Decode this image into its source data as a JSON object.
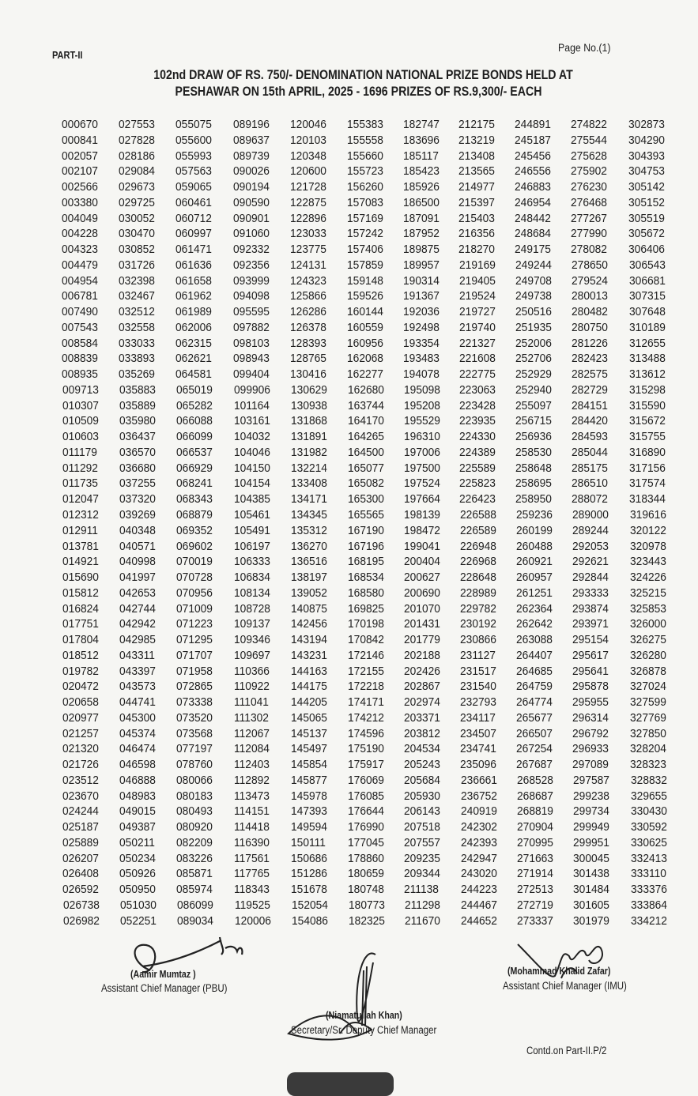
{
  "header": {
    "part": "PART-II",
    "page_no": "Page No.(1)",
    "title_line1": "102nd DRAW OF RS. 750/- DENOMINATION NATIONAL PRIZE BONDS HELD AT",
    "title_line2": "PESHAWAR ON 15th APRIL, 2025 - 1696 PRIZES OF RS.9,300/- EACH"
  },
  "table": {
    "rows": [
      [
        "000670",
        "027553",
        "055075",
        "089196",
        "120046",
        "155383",
        "182747",
        "212175",
        "244891",
        "274822",
        "302873"
      ],
      [
        "000841",
        "027828",
        "055600",
        "089637",
        "120103",
        "155558",
        "183696",
        "213219",
        "245187",
        "275544",
        "304290"
      ],
      [
        "002057",
        "028186",
        "055993",
        "089739",
        "120348",
        "155660",
        "185117",
        "213408",
        "245456",
        "275628",
        "304393"
      ],
      [
        "002107",
        "029084",
        "057563",
        "090026",
        "120600",
        "155723",
        "185423",
        "213565",
        "246556",
        "275902",
        "304753"
      ],
      [
        "002566",
        "029673",
        "059065",
        "090194",
        "121728",
        "156260",
        "185926",
        "214977",
        "246883",
        "276230",
        "305142"
      ],
      [
        "003380",
        "029725",
        "060461",
        "090590",
        "122875",
        "157083",
        "186500",
        "215397",
        "246954",
        "276468",
        "305152"
      ],
      [
        "004049",
        "030052",
        "060712",
        "090901",
        "122896",
        "157169",
        "187091",
        "215403",
        "248442",
        "277267",
        "305519"
      ],
      [
        "004228",
        "030470",
        "060997",
        "091060",
        "123033",
        "157242",
        "187952",
        "216356",
        "248684",
        "277990",
        "305672"
      ],
      [
        "004323",
        "030852",
        "061471",
        "092332",
        "123775",
        "157406",
        "189875",
        "218270",
        "249175",
        "278082",
        "306406"
      ],
      [
        "004479",
        "031726",
        "061636",
        "092356",
        "124131",
        "157859",
        "189957",
        "219169",
        "249244",
        "278650",
        "306543"
      ],
      [
        "004954",
        "032398",
        "061658",
        "093999",
        "124323",
        "159148",
        "190314",
        "219405",
        "249708",
        "279524",
        "306681"
      ],
      [
        "006781",
        "032467",
        "061962",
        "094098",
        "125866",
        "159526",
        "191367",
        "219524",
        "249738",
        "280013",
        "307315"
      ],
      [
        "007490",
        "032512",
        "061989",
        "095595",
        "126286",
        "160144",
        "192036",
        "219727",
        "250516",
        "280482",
        "307648"
      ],
      [
        "007543",
        "032558",
        "062006",
        "097882",
        "126378",
        "160559",
        "192498",
        "219740",
        "251935",
        "280750",
        "310189"
      ],
      [
        "008584",
        "033033",
        "062315",
        "098103",
        "128393",
        "160956",
        "193354",
        "221327",
        "252006",
        "281226",
        "312655"
      ],
      [
        "008839",
        "033893",
        "062621",
        "098943",
        "128765",
        "162068",
        "193483",
        "221608",
        "252706",
        "282423",
        "313488"
      ],
      [
        "008935",
        "035269",
        "064581",
        "099404",
        "130416",
        "162277",
        "194078",
        "222775",
        "252929",
        "282575",
        "313612"
      ],
      [
        "009713",
        "035883",
        "065019",
        "099906",
        "130629",
        "162680",
        "195098",
        "223063",
        "252940",
        "282729",
        "315298"
      ],
      [
        "010307",
        "035889",
        "065282",
        "101164",
        "130938",
        "163744",
        "195208",
        "223428",
        "255097",
        "284151",
        "315590"
      ],
      [
        "010509",
        "035980",
        "066088",
        "103161",
        "131868",
        "164170",
        "195529",
        "223935",
        "256715",
        "284420",
        "315672"
      ],
      [
        "010603",
        "036437",
        "066099",
        "104032",
        "131891",
        "164265",
        "196310",
        "224330",
        "256936",
        "284593",
        "315755"
      ],
      [
        "011179",
        "036570",
        "066537",
        "104046",
        "131982",
        "164500",
        "197006",
        "224389",
        "258530",
        "285044",
        "316890"
      ],
      [
        "011292",
        "036680",
        "066929",
        "104150",
        "132214",
        "165077",
        "197500",
        "225589",
        "258648",
        "285175",
        "317156"
      ],
      [
        "011735",
        "037255",
        "068241",
        "104154",
        "133408",
        "165082",
        "197524",
        "225823",
        "258695",
        "286510",
        "317574"
      ],
      [
        "012047",
        "037320",
        "068343",
        "104385",
        "134171",
        "165300",
        "197664",
        "226423",
        "258950",
        "288072",
        "318344"
      ],
      [
        "012312",
        "039269",
        "068879",
        "105461",
        "134345",
        "165565",
        "198139",
        "226588",
        "259236",
        "289000",
        "319616"
      ],
      [
        "012911",
        "040348",
        "069352",
        "105491",
        "135312",
        "167190",
        "198472",
        "226589",
        "260199",
        "289244",
        "320122"
      ],
      [
        "013781",
        "040571",
        "069602",
        "106197",
        "136270",
        "167196",
        "199041",
        "226948",
        "260488",
        "292053",
        "320978"
      ],
      [
        "014921",
        "040998",
        "070019",
        "106333",
        "136516",
        "168195",
        "200404",
        "226968",
        "260921",
        "292621",
        "323443"
      ],
      [
        "015690",
        "041997",
        "070728",
        "106834",
        "138197",
        "168534",
        "200627",
        "228648",
        "260957",
        "292844",
        "324226"
      ],
      [
        "015812",
        "042653",
        "070956",
        "108134",
        "139052",
        "168580",
        "200690",
        "228989",
        "261251",
        "293333",
        "325215"
      ],
      [
        "016824",
        "042744",
        "071009",
        "108728",
        "140875",
        "169825",
        "201070",
        "229782",
        "262364",
        "293874",
        "325853"
      ],
      [
        "017751",
        "042942",
        "071223",
        "109137",
        "142456",
        "170198",
        "201431",
        "230192",
        "262642",
        "293971",
        "326000"
      ],
      [
        "017804",
        "042985",
        "071295",
        "109346",
        "143194",
        "170842",
        "201779",
        "230866",
        "263088",
        "295154",
        "326275"
      ],
      [
        "018512",
        "043311",
        "071707",
        "109697",
        "143231",
        "172146",
        "202188",
        "231127",
        "264407",
        "295617",
        "326280"
      ],
      [
        "019782",
        "043397",
        "071958",
        "110366",
        "144163",
        "172155",
        "202426",
        "231517",
        "264685",
        "295641",
        "326878"
      ],
      [
        "020472",
        "043573",
        "072865",
        "110922",
        "144175",
        "172218",
        "202867",
        "231540",
        "264759",
        "295878",
        "327024"
      ],
      [
        "020658",
        "044741",
        "073338",
        "111041",
        "144205",
        "174171",
        "202974",
        "232793",
        "264774",
        "295955",
        "327599"
      ],
      [
        "020977",
        "045300",
        "073520",
        "111302",
        "145065",
        "174212",
        "203371",
        "234117",
        "265677",
        "296314",
        "327769"
      ],
      [
        "021257",
        "045374",
        "073568",
        "112067",
        "145137",
        "174596",
        "203812",
        "234507",
        "266507",
        "296792",
        "327850"
      ],
      [
        "021320",
        "046474",
        "077197",
        "112084",
        "145497",
        "175190",
        "204534",
        "234741",
        "267254",
        "296933",
        "328204"
      ],
      [
        "021726",
        "046598",
        "078760",
        "112403",
        "145854",
        "175917",
        "205243",
        "235096",
        "267687",
        "297089",
        "328323"
      ],
      [
        "023512",
        "046888",
        "080066",
        "112892",
        "145877",
        "176069",
        "205684",
        "236661",
        "268528",
        "297587",
        "328832"
      ],
      [
        "023670",
        "048983",
        "080183",
        "113473",
        "145978",
        "176085",
        "205930",
        "236752",
        "268687",
        "299238",
        "329655"
      ],
      [
        "024244",
        "049015",
        "080493",
        "114151",
        "147393",
        "176644",
        "206143",
        "240919",
        "268819",
        "299734",
        "330430"
      ],
      [
        "025187",
        "049387",
        "080920",
        "114418",
        "149594",
        "176990",
        "207518",
        "242302",
        "270904",
        "299949",
        "330592"
      ],
      [
        "025889",
        "050211",
        "082209",
        "116390",
        "150111",
        "177045",
        "207557",
        "242393",
        "270995",
        "299951",
        "330625"
      ],
      [
        "026207",
        "050234",
        "083226",
        "117561",
        "150686",
        "178860",
        "209235",
        "242947",
        "271663",
        "300045",
        "332413"
      ],
      [
        "026408",
        "050926",
        "085871",
        "117765",
        "151286",
        "180659",
        "209344",
        "243020",
        "271914",
        "301438",
        "333110"
      ],
      [
        "026592",
        "050950",
        "085974",
        "118343",
        "151678",
        "180748",
        "211138",
        "244223",
        "272513",
        "301484",
        "333376"
      ],
      [
        "026738",
        "051030",
        "086099",
        "119525",
        "152054",
        "180773",
        "211298",
        "244467",
        "272719",
        "301605",
        "333864"
      ],
      [
        "026982",
        "052251",
        "089034",
        "120006",
        "154086",
        "182325",
        "211670",
        "244652",
        "273337",
        "301979",
        "334212"
      ]
    ]
  },
  "signatories": [
    {
      "name": "(Aamir Mumtaz )",
      "title": "Assistant Chief Manager (PBU)"
    },
    {
      "name": "(Niamatullah Khan)",
      "title": "Secretary/Sr. Deputy Chief Manager"
    },
    {
      "name": "(Mohammad Khalid Zafar)",
      "title": "Assistant Chief Manager (IMU)"
    }
  ],
  "footer": {
    "continued": "Contd.on Part-II.P/2"
  }
}
